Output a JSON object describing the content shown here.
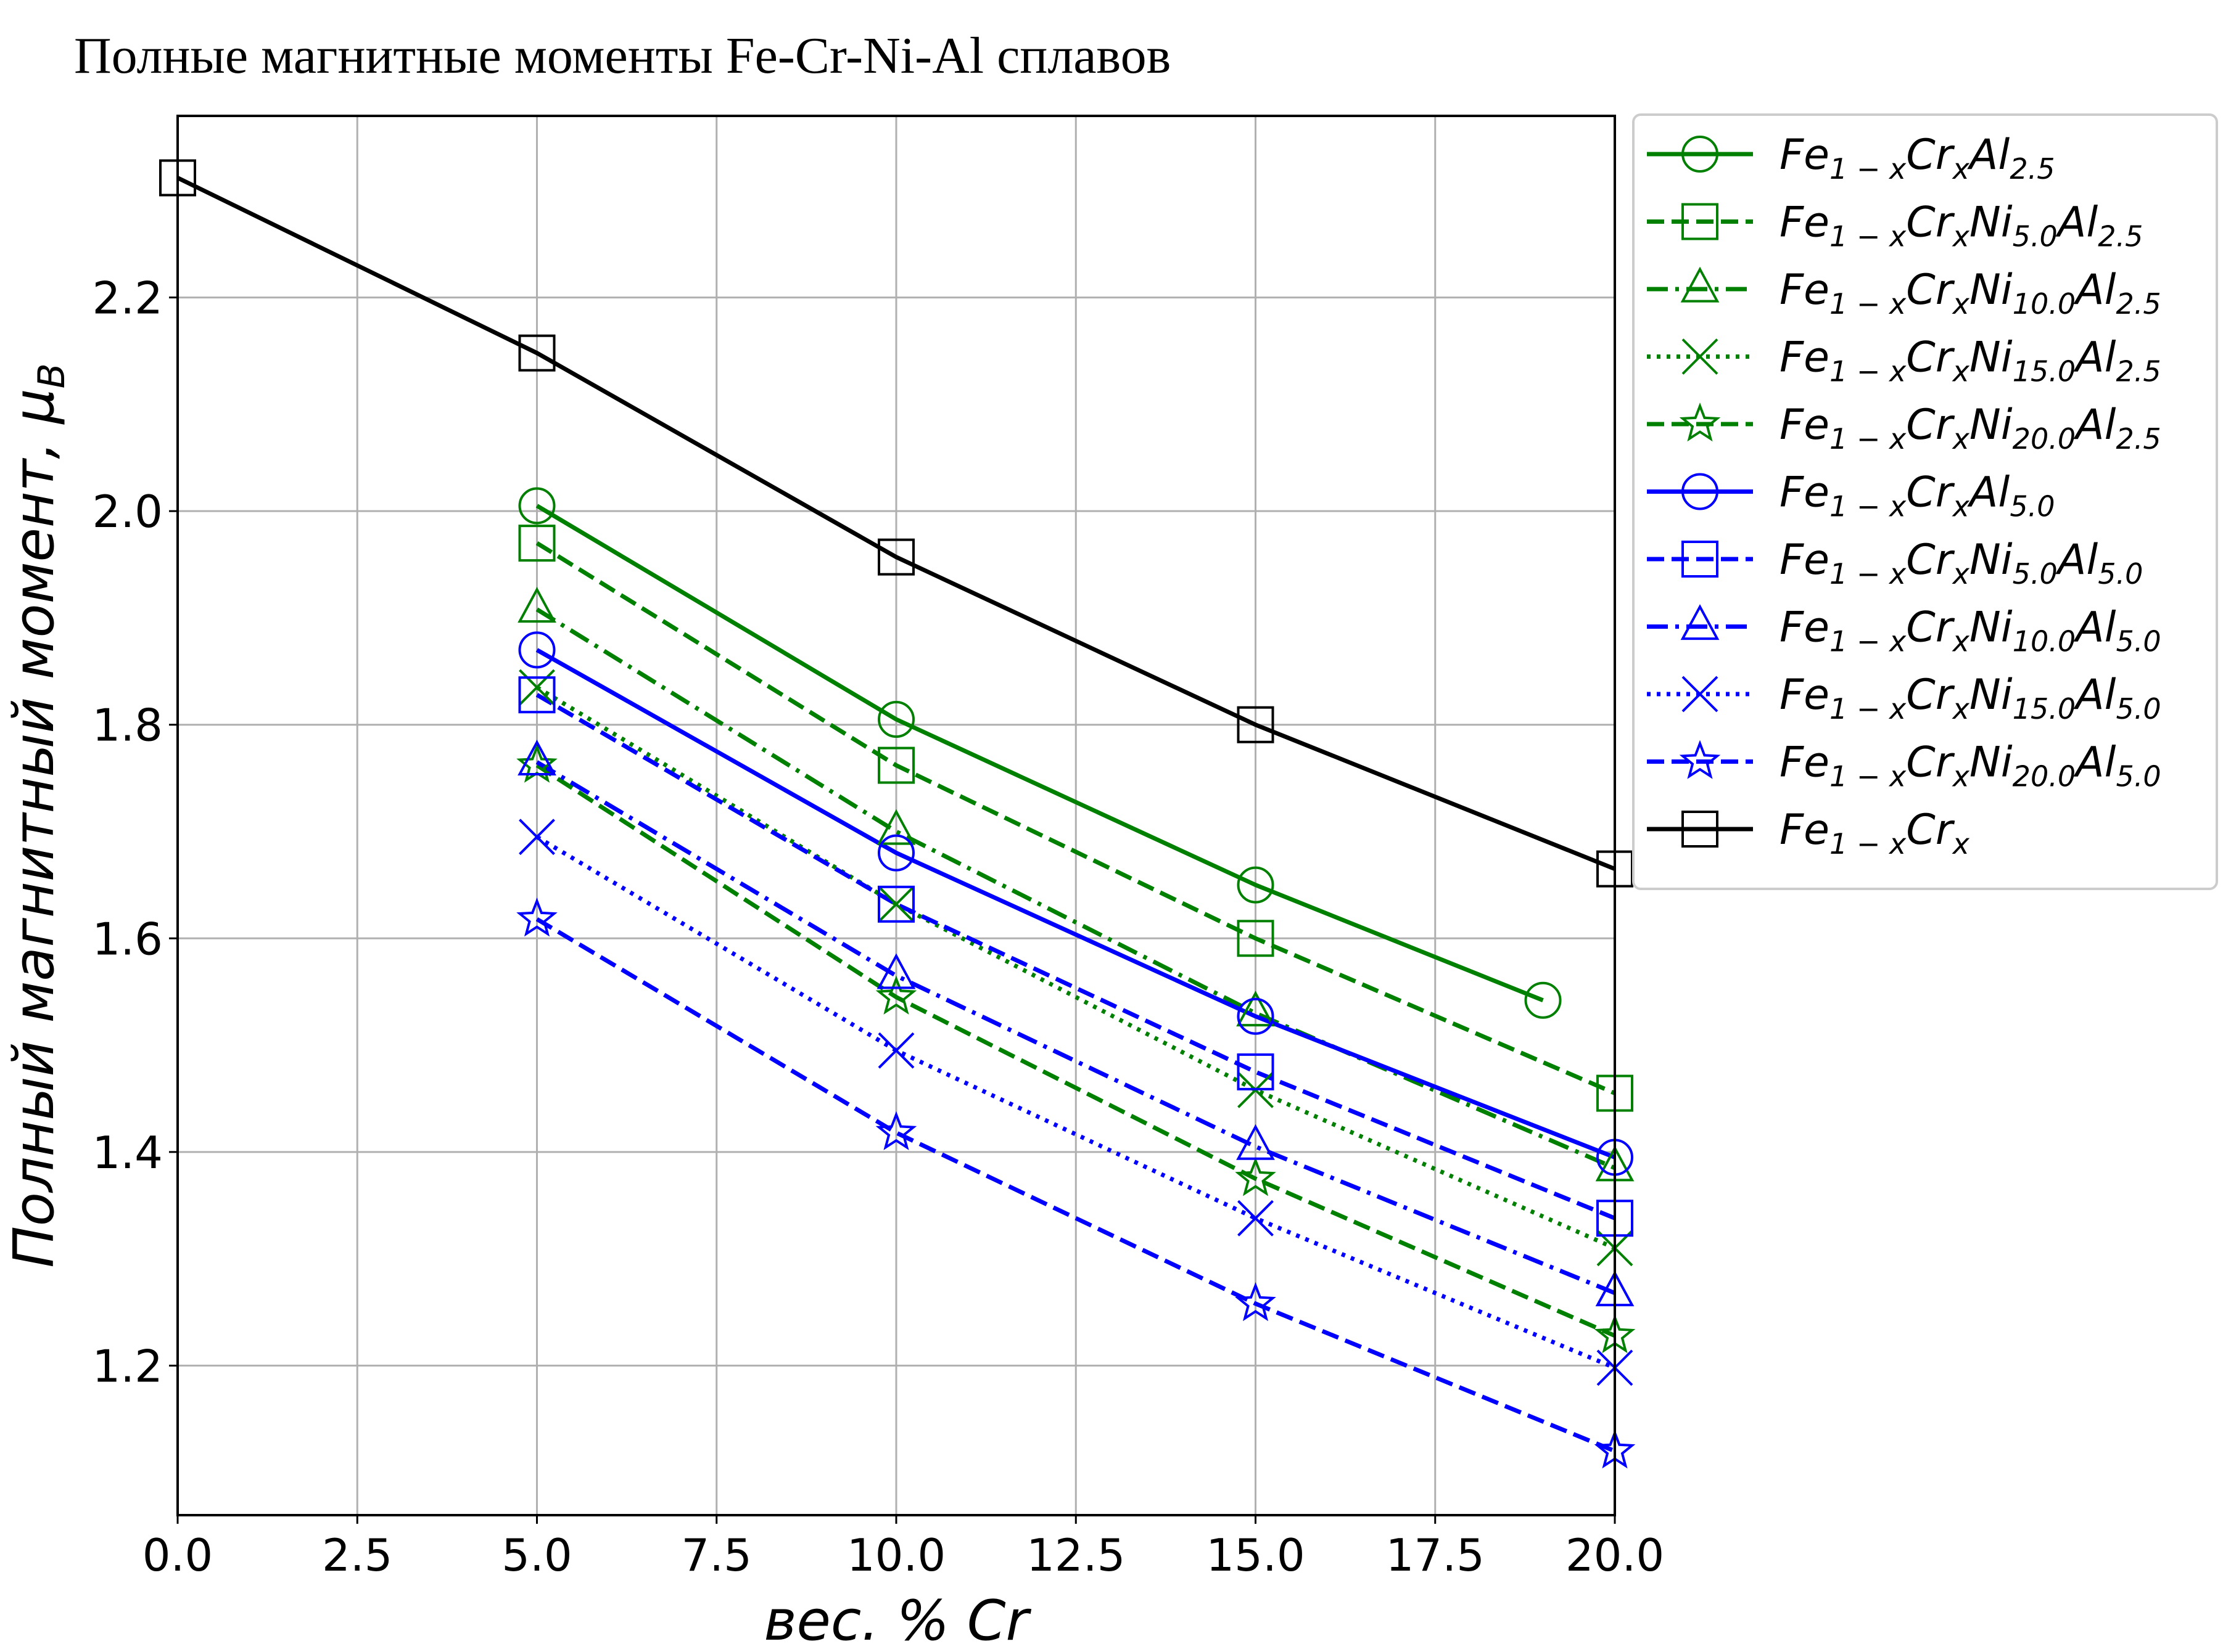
{
  "chart_data": {
    "type": "line",
    "title": "Полные магнитные моменты Fe-Cr-Ni-Al сплавов",
    "xlabel": "вес. % Cr",
    "ylabel": "Полный магнитный момент, μ",
    "ylabel_sub": "B",
    "xlim": [
      0,
      20
    ],
    "ylim": [
      1.06,
      2.37
    ],
    "xticks": [
      "0.0",
      "2.5",
      "5.0",
      "7.5",
      "10.0",
      "12.5",
      "15.0",
      "17.5",
      "20.0"
    ],
    "yticks": [
      "1.2",
      "1.4",
      "1.6",
      "1.8",
      "2.0",
      "2.2"
    ],
    "grid": true,
    "legend_position": "outside-right",
    "series": [
      {
        "key": "s1",
        "legend": [
          [
            "Fe",
            "1 − x"
          ],
          [
            "Cr",
            "x"
          ],
          [
            "Al",
            "2.5"
          ]
        ],
        "color": "#008000",
        "marker": "circle",
        "linestyle": "solid",
        "x": [
          5,
          10,
          15,
          19
        ],
        "y": [
          2.005,
          1.805,
          1.65,
          1.542
        ]
      },
      {
        "key": "s2",
        "legend": [
          [
            "Fe",
            "1 − x"
          ],
          [
            "Cr",
            "x"
          ],
          [
            "Ni",
            "5.0"
          ],
          [
            "Al",
            "2.5"
          ]
        ],
        "color": "#008000",
        "marker": "square",
        "linestyle": "dashed",
        "x": [
          5,
          10,
          15,
          20
        ],
        "y": [
          1.97,
          1.762,
          1.6,
          1.455
        ]
      },
      {
        "key": "s3",
        "legend": [
          [
            "Fe",
            "1 − x"
          ],
          [
            "Cr",
            "x"
          ],
          [
            "Ni",
            "10.0"
          ],
          [
            "Al",
            "2.5"
          ]
        ],
        "color": "#008000",
        "marker": "triangle",
        "linestyle": "dashdot",
        "x": [
          5,
          10,
          15,
          20
        ],
        "y": [
          1.908,
          1.7,
          1.53,
          1.385
        ]
      },
      {
        "key": "s4",
        "legend": [
          [
            "Fe",
            "1 − x"
          ],
          [
            "Cr",
            "x"
          ],
          [
            "Ni",
            "15.0"
          ],
          [
            "Al",
            "2.5"
          ]
        ],
        "color": "#008000",
        "marker": "x",
        "linestyle": "dotted",
        "x": [
          5,
          10,
          15,
          20
        ],
        "y": [
          1.835,
          1.632,
          1.458,
          1.31
        ]
      },
      {
        "key": "s5",
        "legend": [
          [
            "Fe",
            "1 − x"
          ],
          [
            "Cr",
            "x"
          ],
          [
            "Ni",
            "20.0"
          ],
          [
            "Al",
            "2.5"
          ]
        ],
        "color": "#008000",
        "marker": "star",
        "linestyle": "dashed",
        "x": [
          5,
          10,
          15,
          20
        ],
        "y": [
          1.762,
          1.545,
          1.375,
          1.228
        ]
      },
      {
        "key": "s6",
        "legend": [
          [
            "Fe",
            "1 − x"
          ],
          [
            "Cr",
            "x"
          ],
          [
            "Al",
            "5.0"
          ]
        ],
        "color": "#0000ff",
        "marker": "circle",
        "linestyle": "solid",
        "x": [
          5,
          10,
          15,
          20
        ],
        "y": [
          1.87,
          1.68,
          1.527,
          1.395
        ]
      },
      {
        "key": "s7",
        "legend": [
          [
            "Fe",
            "1 − x"
          ],
          [
            "Cr",
            "x"
          ],
          [
            "Ni",
            "5.0"
          ],
          [
            "Al",
            "5.0"
          ]
        ],
        "color": "#0000ff",
        "marker": "square",
        "linestyle": "dashed",
        "x": [
          5,
          10,
          15,
          20
        ],
        "y": [
          1.828,
          1.632,
          1.475,
          1.338
        ]
      },
      {
        "key": "s8",
        "legend": [
          [
            "Fe",
            "1 − x"
          ],
          [
            "Cr",
            "x"
          ],
          [
            "Ni",
            "10.0"
          ],
          [
            "Al",
            "5.0"
          ]
        ],
        "color": "#0000ff",
        "marker": "triangle",
        "linestyle": "dashdot",
        "x": [
          5,
          10,
          15,
          20
        ],
        "y": [
          1.765,
          1.565,
          1.405,
          1.268
        ]
      },
      {
        "key": "s9",
        "legend": [
          [
            "Fe",
            "1 − x"
          ],
          [
            "Cr",
            "x"
          ],
          [
            "Ni",
            "15.0"
          ],
          [
            "Al",
            "5.0"
          ]
        ],
        "color": "#0000ff",
        "marker": "x",
        "linestyle": "dotted",
        "x": [
          5,
          10,
          15,
          20
        ],
        "y": [
          1.695,
          1.495,
          1.338,
          1.198
        ]
      },
      {
        "key": "s10",
        "legend": [
          [
            "Fe",
            "1 − x"
          ],
          [
            "Cr",
            "x"
          ],
          [
            "Ni",
            "20.0"
          ],
          [
            "Al",
            "5.0"
          ]
        ],
        "color": "#0000ff",
        "marker": "star",
        "linestyle": "dashed",
        "x": [
          5,
          10,
          15,
          20
        ],
        "y": [
          1.618,
          1.418,
          1.258,
          1.12
        ]
      },
      {
        "key": "s11",
        "legend": [
          [
            "Fe",
            "1 − x"
          ],
          [
            "Cr",
            "x"
          ]
        ],
        "color": "#000000",
        "marker": "square",
        "linestyle": "solid",
        "x": [
          0,
          5,
          10,
          15,
          20
        ],
        "y": [
          2.312,
          2.148,
          1.957,
          1.8,
          1.665
        ]
      }
    ]
  }
}
